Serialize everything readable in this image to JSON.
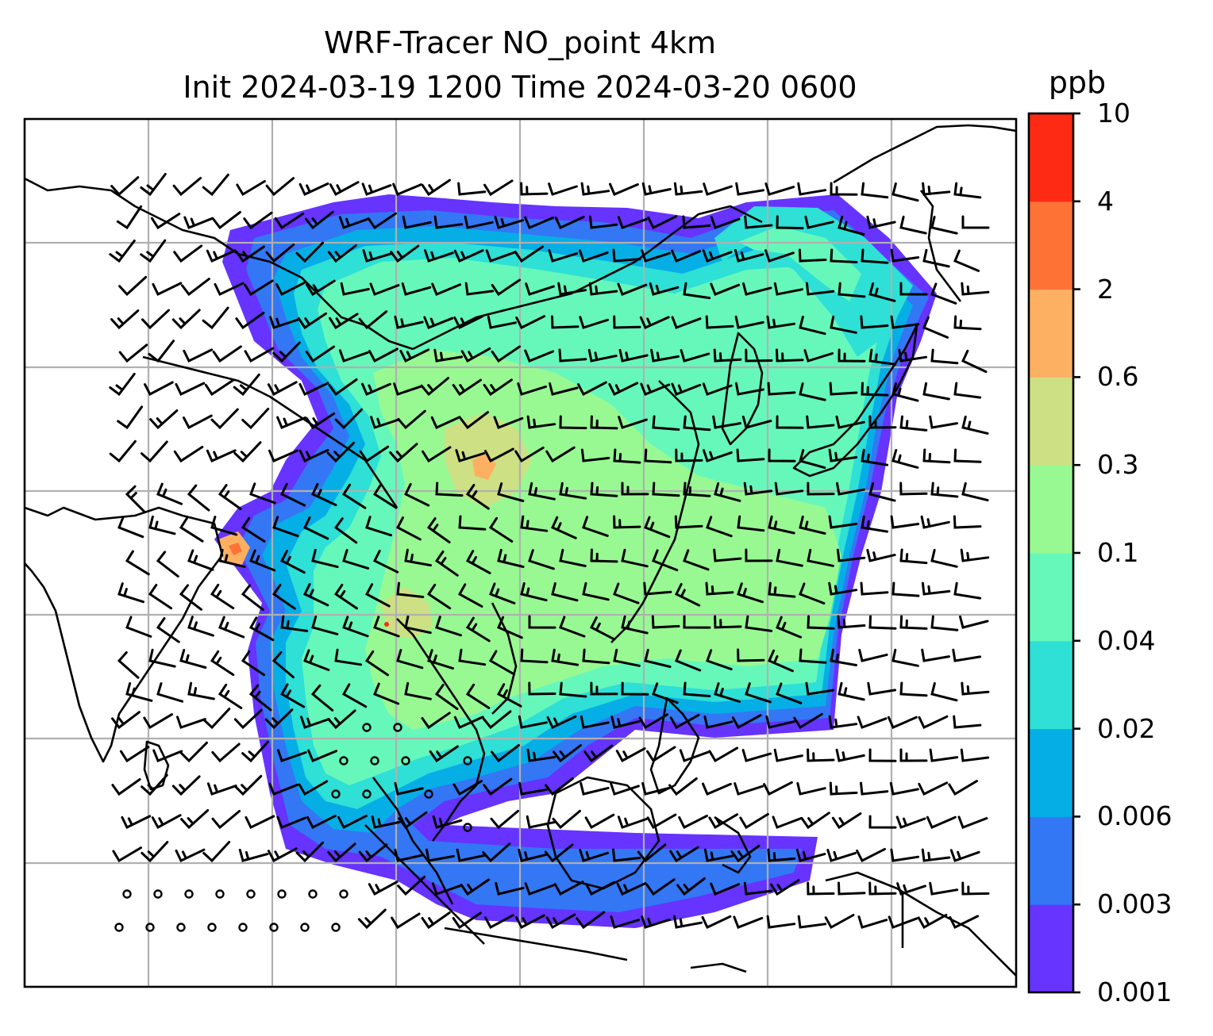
{
  "title": {
    "line1": "WRF-Tracer NO_point 4km",
    "line2": "Init 2024-03-19 1200 Time 2024-03-20 0600"
  },
  "colorbar": {
    "units": "ppb",
    "levels": [
      "0.001",
      "0.003",
      "0.006",
      "0.02",
      "0.04",
      "0.1",
      "0.3",
      "0.6",
      "2",
      "4",
      "10"
    ],
    "colors": [
      "#6633ff",
      "#3377f5",
      "#06aee6",
      "#2ee0d5",
      "#66f8bb",
      "#98f993",
      "#cde084",
      "#fdb062",
      "#ff7236",
      "#ff2a14"
    ]
  },
  "map": {
    "grid_color": "#b0b0b0",
    "coastline_color": "#000000",
    "barb_color": "#000000",
    "field": "NO tracer concentration with wind barbs"
  }
}
